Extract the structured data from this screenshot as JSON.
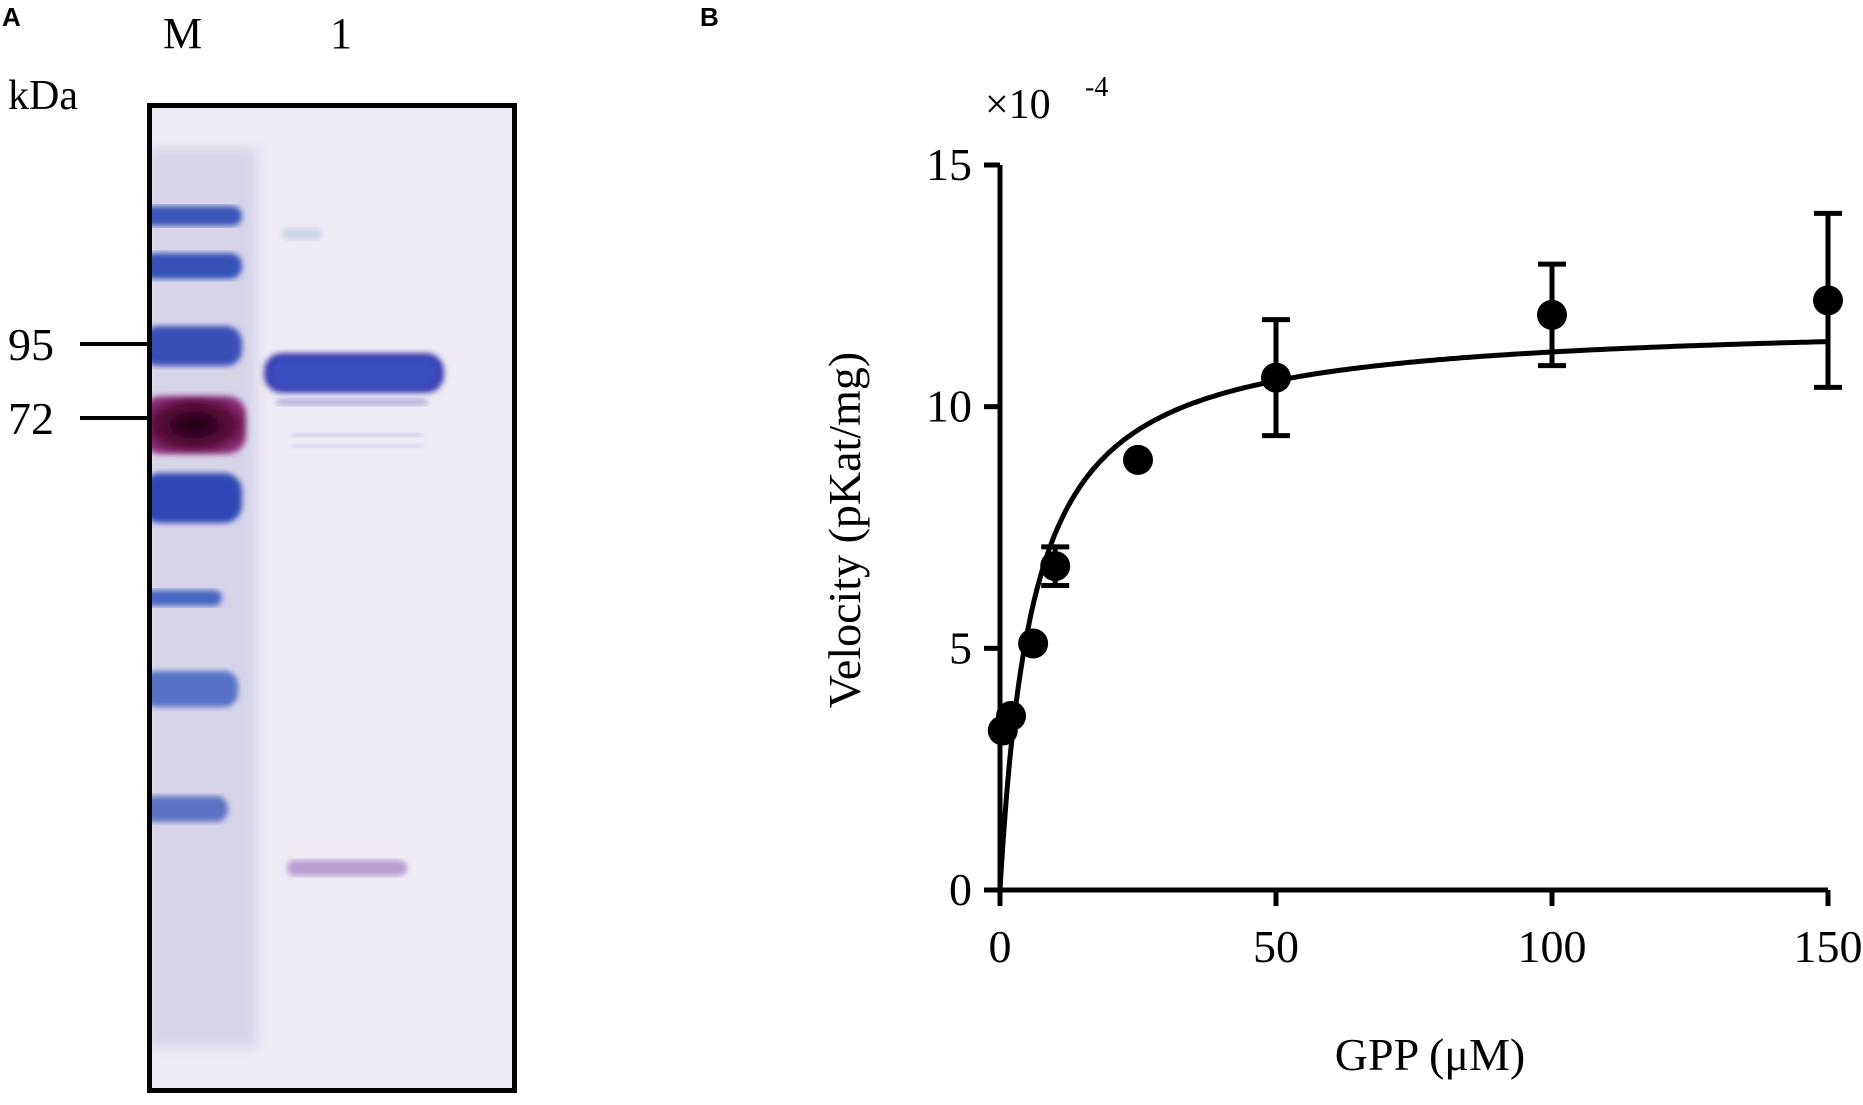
{
  "panelA": {
    "label": "A",
    "lanes": [
      "M",
      "1"
    ],
    "unit": "kDa",
    "markers": [
      {
        "label": "95"
      },
      {
        "label": "72"
      }
    ]
  },
  "panelB": {
    "label": "B"
  },
  "chart_data": {
    "type": "scatter",
    "title": "",
    "xlabel": "GPP (μM)",
    "ylabel": "Velocity (pKat/mg)",
    "y_multiplier": "×10",
    "y_multiplier_exp": "-4",
    "xlim": [
      0,
      150
    ],
    "ylim": [
      0,
      15
    ],
    "x_ticks": [
      "0",
      "50",
      "100",
      "150"
    ],
    "y_ticks": [
      "0",
      "5",
      "10",
      "15"
    ],
    "grid": false,
    "legend": "none",
    "series": [
      {
        "points": [
          {
            "x": 0.5,
            "y": 3.3,
            "err": 0
          },
          {
            "x": 2,
            "y": 3.6,
            "err": 0
          },
          {
            "x": 6,
            "y": 5.1,
            "err": 0
          },
          {
            "x": 10,
            "y": 6.7,
            "err": 0.4
          },
          {
            "x": 25,
            "y": 8.9,
            "err": 0
          },
          {
            "x": 50,
            "y": 10.6,
            "err": 1.2
          },
          {
            "x": 100,
            "y": 11.9,
            "err": 1.05
          },
          {
            "x": 150,
            "y": 12.2,
            "err": 1.8
          }
        ]
      }
    ],
    "fit": {
      "model": "michaelis-menten",
      "vmax": 11.8,
      "km": 6.0
    }
  }
}
